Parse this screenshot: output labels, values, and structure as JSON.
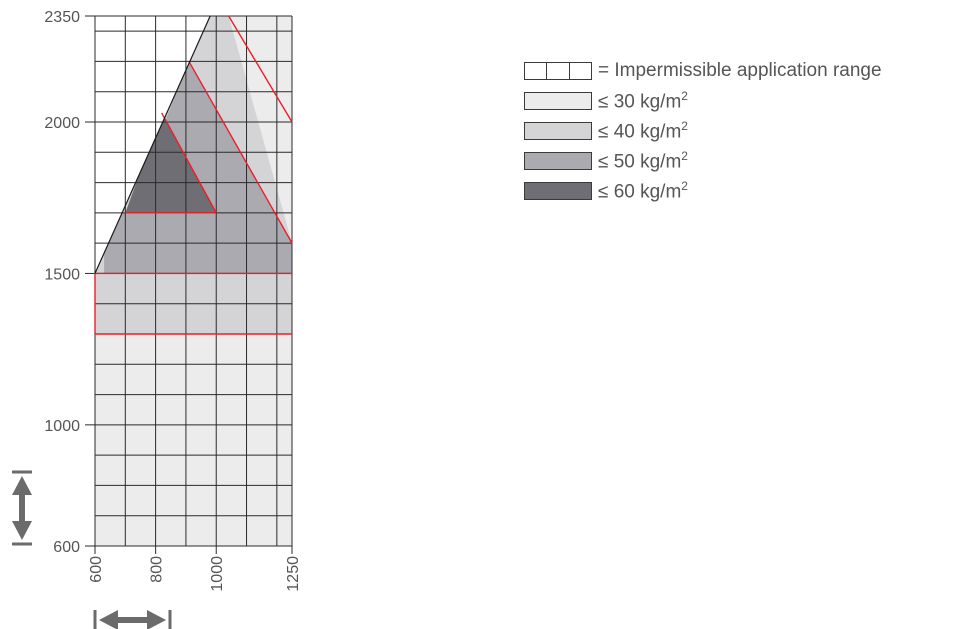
{
  "chart_data": {
    "type": "area",
    "title": "",
    "xlabel": "",
    "ylabel": "",
    "xlim": [
      600,
      1250
    ],
    "ylim": [
      600,
      2350
    ],
    "x_ticks": [
      "600",
      "800",
      "1000",
      "1250"
    ],
    "y_ticks": [
      "600",
      "1000",
      "1500",
      "2000",
      "2350"
    ],
    "x_grid_values": [
      600,
      700,
      800,
      900,
      1000,
      1100,
      1200,
      1250
    ],
    "y_grid_values": [
      600,
      700,
      800,
      900,
      1000,
      1100,
      1200,
      1300,
      1400,
      1500,
      1600,
      1700,
      1800,
      1900,
      2000,
      2100,
      2200,
      2300,
      2350
    ],
    "grid": true,
    "legend_position": "right",
    "regions": [
      {
        "label": "≤ 30 kg/m²",
        "color": "#ececec",
        "polygon": [
          [
            600,
            600
          ],
          [
            1250,
            600
          ],
          [
            1250,
            2350
          ],
          [
            600,
            2350
          ]
        ]
      },
      {
        "label": "≤ 40 kg/m²",
        "color": "#d4d4d7",
        "polygon": [
          [
            600,
            1300
          ],
          [
            1250,
            1300
          ],
          [
            1250,
            1600
          ],
          [
            1041,
            2350
          ],
          [
            980,
            2350
          ],
          [
            600,
            1500
          ]
        ]
      },
      {
        "label": "≤ 50 kg/m²",
        "color": "#aaaab0",
        "polygon": [
          [
            630,
            1500
          ],
          [
            1250,
            1500
          ],
          [
            1250,
            1600
          ],
          [
            910,
            2200
          ],
          [
            710,
            1700
          ],
          [
            630,
            1700
          ]
        ]
      },
      {
        "label": "≤ 60 kg/m²",
        "color": "#6e6e74",
        "polygon": [
          [
            700,
            1700
          ],
          [
            1000,
            1700
          ],
          [
            820,
            2030
          ]
        ]
      },
      {
        "label": "Impermissible application range",
        "color": "#ffffff",
        "polygon": [
          [
            600,
            1500
          ],
          [
            980,
            2350
          ],
          [
            600,
            2350
          ]
        ]
      }
    ],
    "boundary_color": "#e8202a",
    "red_boundaries": [
      [
        [
          600,
          1300
        ],
        [
          1250,
          1300
        ]
      ],
      [
        [
          600,
          1500
        ],
        [
          1250,
          1500
        ]
      ],
      [
        [
          600,
          1300
        ],
        [
          600,
          1500
        ]
      ],
      [
        [
          1041,
          2350
        ],
        [
          1250,
          2000
        ]
      ],
      [
        [
          910,
          2200
        ],
        [
          1250,
          1600
        ]
      ],
      [
        [
          820,
          2030
        ],
        [
          1000,
          1700
        ]
      ],
      [
        [
          700,
          1700
        ],
        [
          1000,
          1700
        ]
      ]
    ],
    "limit_line": [
      [
        600,
        1500
      ],
      [
        980,
        2350
      ]
    ]
  },
  "legend": {
    "items": [
      {
        "text": "= Impermissible application range",
        "sup": "",
        "color": "#ffffff",
        "kind": "impermissible"
      },
      {
        "text": "≤ 30 kg/m",
        "sup": "2",
        "color": "#ececec",
        "kind": "fill"
      },
      {
        "text": "≤ 40 kg/m",
        "sup": "2",
        "color": "#d4d4d7",
        "kind": "fill"
      },
      {
        "text": "≤ 50 kg/m",
        "sup": "2",
        "color": "#aaaab0",
        "kind": "fill"
      },
      {
        "text": "≤ 60 kg/m",
        "sup": "2",
        "color": "#6e6e74",
        "kind": "fill"
      }
    ]
  },
  "icons": {
    "vertical": "double-headed-vertical-arrow",
    "horizontal": "double-headed-horizontal-arrow"
  }
}
